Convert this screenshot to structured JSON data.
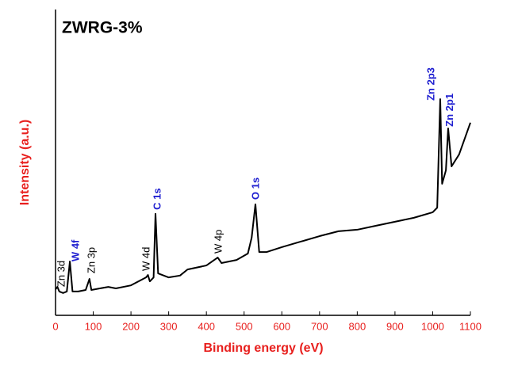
{
  "chart_data": {
    "type": "line",
    "title": "ZWRG-3%",
    "x_label": "Binding energy (eV)",
    "y_label": "Intensity (a.u.)",
    "x": [
      0,
      5,
      10,
      20,
      30,
      38,
      45,
      60,
      80,
      90,
      95,
      140,
      160,
      200,
      240,
      245,
      250,
      260,
      265,
      272,
      300,
      330,
      350,
      400,
      430,
      440,
      480,
      510,
      520,
      530,
      540,
      560,
      600,
      650,
      700,
      750,
      800,
      850,
      900,
      950,
      1000,
      1012,
      1020,
      1025,
      1035,
      1041,
      1050,
      1070,
      1100
    ],
    "series": [
      {
        "color": "#000000",
        "values": [
          8.5,
          9.3,
          7.8,
          7.3,
          7.8,
          17.6,
          7.8,
          7.8,
          8.3,
          11.9,
          8.3,
          9.3,
          8.8,
          9.8,
          12.4,
          13.2,
          11.1,
          12.4,
          33.2,
          13.7,
          12.4,
          13.0,
          15.0,
          16.3,
          18.9,
          17.1,
          18.1,
          20.2,
          25.4,
          36.3,
          20.7,
          20.7,
          22.3,
          24.1,
          25.9,
          27.5,
          28.0,
          29.3,
          30.6,
          31.9,
          33.7,
          35.2,
          70.7,
          43.0,
          47.4,
          61.1,
          48.7,
          52.6,
          63.0
        ]
      }
    ],
    "xlim": [
      0,
      1100
    ],
    "xticks": [
      0,
      100,
      200,
      300,
      400,
      500,
      600,
      700,
      800,
      900,
      1000,
      1100
    ],
    "ylim": [
      0,
      100
    ],
    "annotations": [
      {
        "text": "Zn 3d",
        "x": 17,
        "y": 9.3,
        "color": "#000000"
      },
      {
        "text": "W 4f",
        "x": 55,
        "y": 17.6,
        "color": "#1f1fd0"
      },
      {
        "text": "Zn 3p",
        "x": 97,
        "y": 13.7,
        "color": "#000000"
      },
      {
        "text": "W 4d",
        "x": 242,
        "y": 14.5,
        "color": "#000000"
      },
      {
        "text": "C 1s",
        "x": 271,
        "y": 34.5,
        "color": "#1f1fd0"
      },
      {
        "text": "W 4p",
        "x": 433,
        "y": 20.2,
        "color": "#000000"
      },
      {
        "text": "O 1s",
        "x": 532,
        "y": 37.8,
        "color": "#1f1fd0"
      },
      {
        "text": "Zn 2p3",
        "x": 997,
        "y": 70.2,
        "color": "#1f1fd0"
      },
      {
        "text": "Zn 2p1",
        "x": 1047,
        "y": 61.7,
        "color": "#1f1fd0"
      }
    ]
  }
}
